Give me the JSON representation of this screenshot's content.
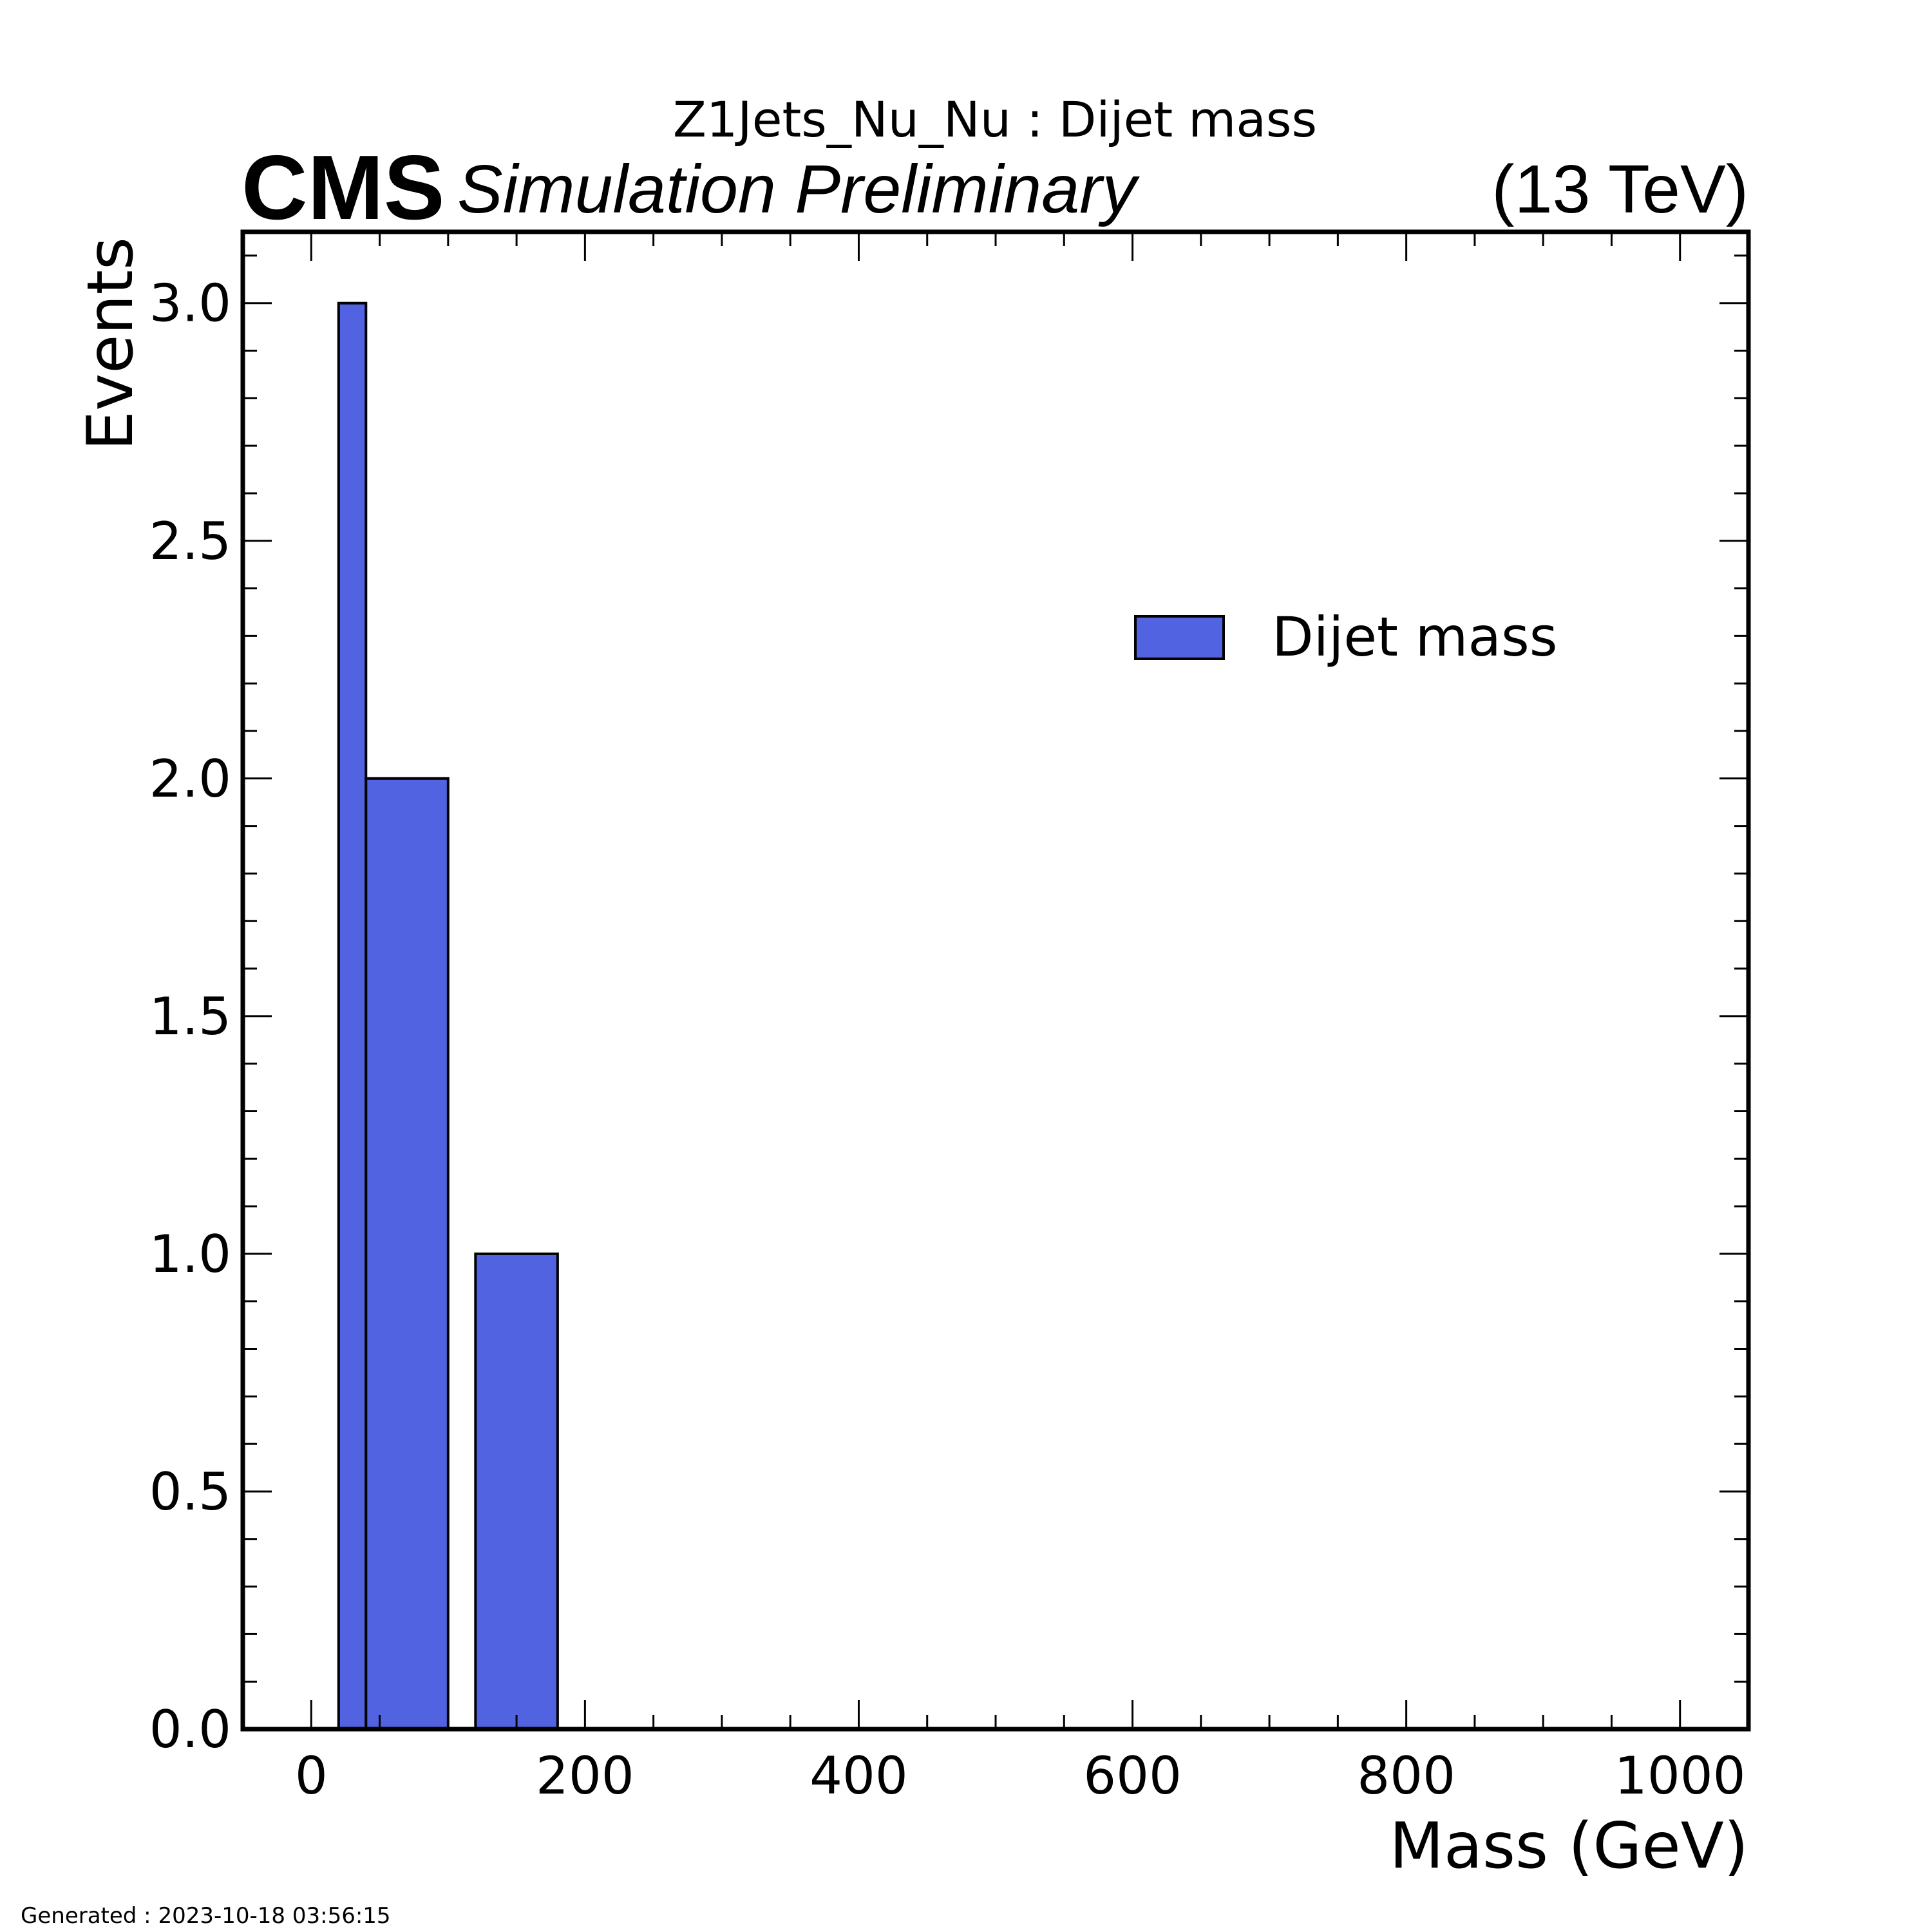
{
  "header": {
    "title": "Z1Jets_Nu_Nu : Dijet mass",
    "experiment": "CMS",
    "status": "Simulation Preliminary",
    "energy": "(13 TeV)"
  },
  "footer": {
    "generated": "Generated : 2023-10-18 03:56:15"
  },
  "chart_data": {
    "type": "bar",
    "xlabel": "Mass (GeV)",
    "ylabel": "Events",
    "xlim": [
      -50,
      1050
    ],
    "ylim": [
      0,
      3.15
    ],
    "x_ticks": [
      0,
      200,
      400,
      600,
      800,
      1000
    ],
    "x_tick_labels": [
      "0",
      "200",
      "400",
      "600",
      "800",
      "1000"
    ],
    "y_ticks": [
      0,
      0.5,
      1.0,
      1.5,
      2.0,
      2.5,
      3.0
    ],
    "y_tick_labels": [
      "0.0",
      "0.5",
      "1.0",
      "1.5",
      "2.0",
      "2.5",
      "3.0"
    ],
    "legend": {
      "entries": [
        "Dijet mass"
      ],
      "placement": "upper-right"
    },
    "colors": {
      "bar_fill": "#5263e2",
      "bar_edge": "#000000"
    },
    "series": [
      {
        "name": "Dijet mass",
        "bins": [
          {
            "x_low": 20,
            "x_high": 40,
            "value": 3
          },
          {
            "x_low": 40,
            "x_high": 100,
            "value": 2
          },
          {
            "x_low": 120,
            "x_high": 180,
            "value": 1
          }
        ]
      }
    ]
  }
}
